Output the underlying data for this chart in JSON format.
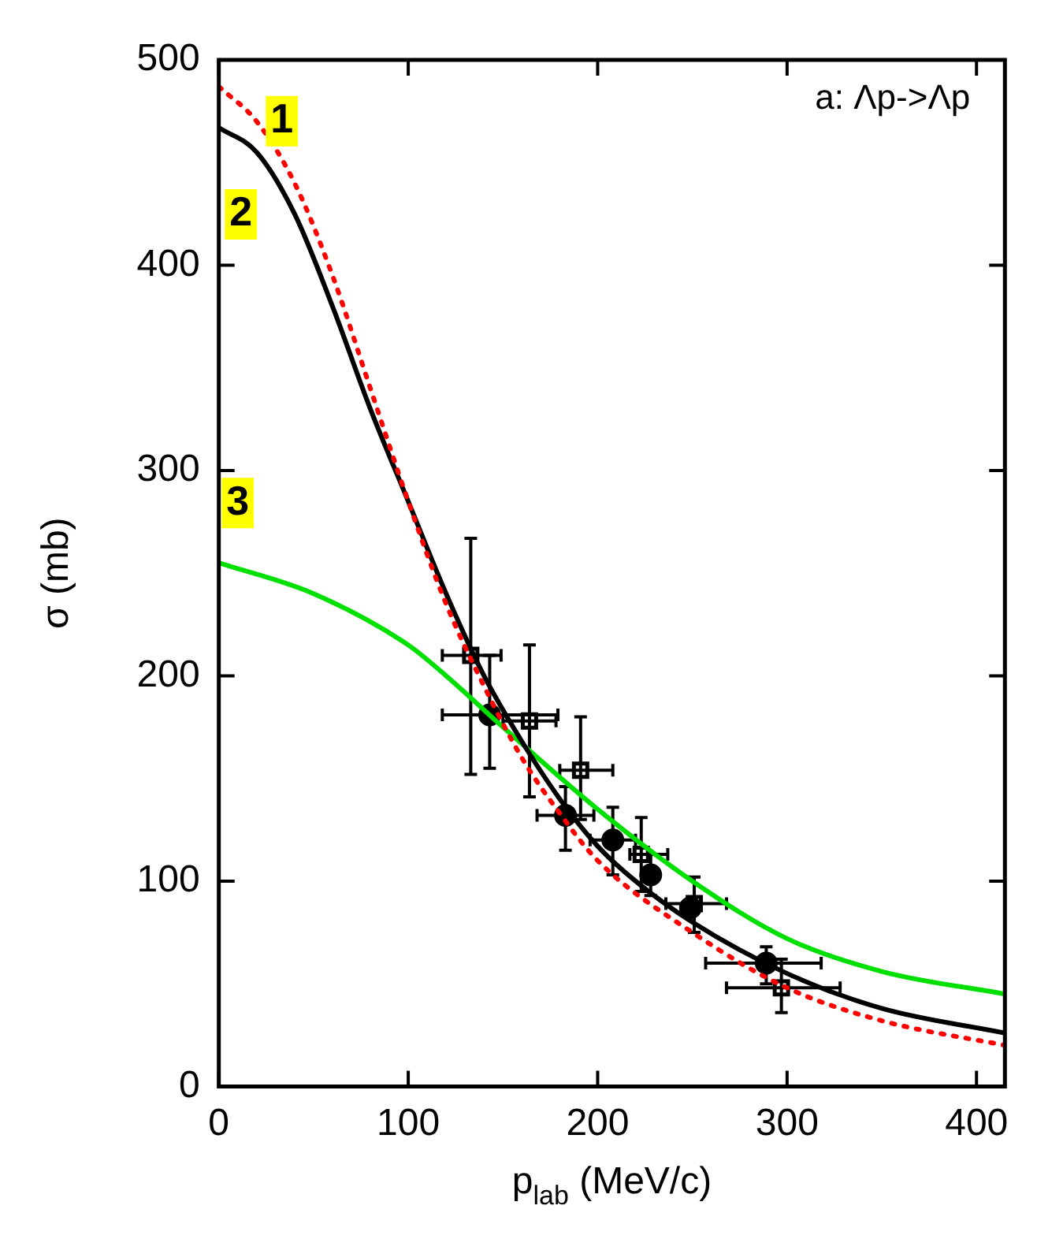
{
  "chart_data": {
    "type": "line",
    "xlabel": "p$_{lab}$ (MeV/c)",
    "ylabel": "σ (mb)",
    "xlim": [
      0,
      415
    ],
    "xticks": [
      0,
      100,
      200,
      300,
      400
    ],
    "ylim": [
      0,
      500
    ],
    "yticks": [
      0,
      100,
      200,
      300,
      400,
      500
    ],
    "grid": false,
    "legend": false,
    "annotations": [
      "a: Λp->Λp"
    ],
    "series": [
      {
        "name": "1",
        "line_style": "dotted",
        "marker": "none",
        "color": "#ff0000",
        "x": [
          0,
          20,
          40,
          60,
          80,
          100,
          120,
          140,
          160,
          180,
          200,
          250,
          300,
          350,
          415
        ],
        "values": [
          487,
          470,
          440,
          395,
          340,
          285,
          235,
          195,
          160,
          133,
          110,
          75,
          48,
          32,
          20
        ]
      },
      {
        "name": "2",
        "line_style": "solid",
        "marker": "none",
        "color": "#000000",
        "x": [
          0,
          20,
          40,
          60,
          80,
          100,
          120,
          140,
          160,
          180,
          200,
          220,
          250,
          300,
          350,
          415
        ],
        "values": [
          467,
          455,
          425,
          380,
          330,
          285,
          240,
          200,
          168,
          140,
          117,
          100,
          80,
          55,
          38,
          26
        ]
      },
      {
        "name": "3",
        "line_style": "solid",
        "marker": "none",
        "color": "#00e000",
        "x": [
          0,
          50,
          100,
          120,
          150,
          200,
          250,
          300,
          350,
          415
        ],
        "values": [
          255,
          240,
          215,
          200,
          175,
          135,
          100,
          72,
          56,
          45
        ]
      },
      {
        "type": "scatter",
        "marker": "square",
        "color": "#000000",
        "x": [
          133,
          164,
          191,
          223,
          251,
          297
        ],
        "values": [
          210,
          178,
          154,
          113,
          89,
          48
        ],
        "errors": [
          [
            152,
            267
          ],
          [
            141,
            215
          ],
          [
            130,
            180
          ],
          [
            95,
            131
          ],
          [
            75,
            102
          ],
          [
            36,
            62
          ]
        ],
        "xerrors": [
          [
            118,
            149
          ],
          [
            150,
            178
          ],
          [
            180,
            208
          ],
          [
            217,
            237
          ],
          [
            236,
            268
          ],
          [
            268,
            328
          ]
        ]
      },
      {
        "type": "scatter",
        "marker": "circle",
        "color": "#000000",
        "x": [
          143,
          183,
          208,
          228,
          249,
          289
        ],
        "values": [
          181,
          132,
          120,
          103,
          87,
          60
        ],
        "errors": [
          [
            155,
            210
          ],
          [
            115,
            146
          ],
          [
            103,
            136
          ],
          [
            93,
            113
          ],
          null,
          [
            50,
            68
          ]
        ],
        "xerrors": [
          [
            118,
            179
          ],
          [
            168,
            198
          ],
          [
            196,
            220
          ],
          null,
          null,
          [
            257,
            318
          ]
        ]
      }
    ]
  }
}
